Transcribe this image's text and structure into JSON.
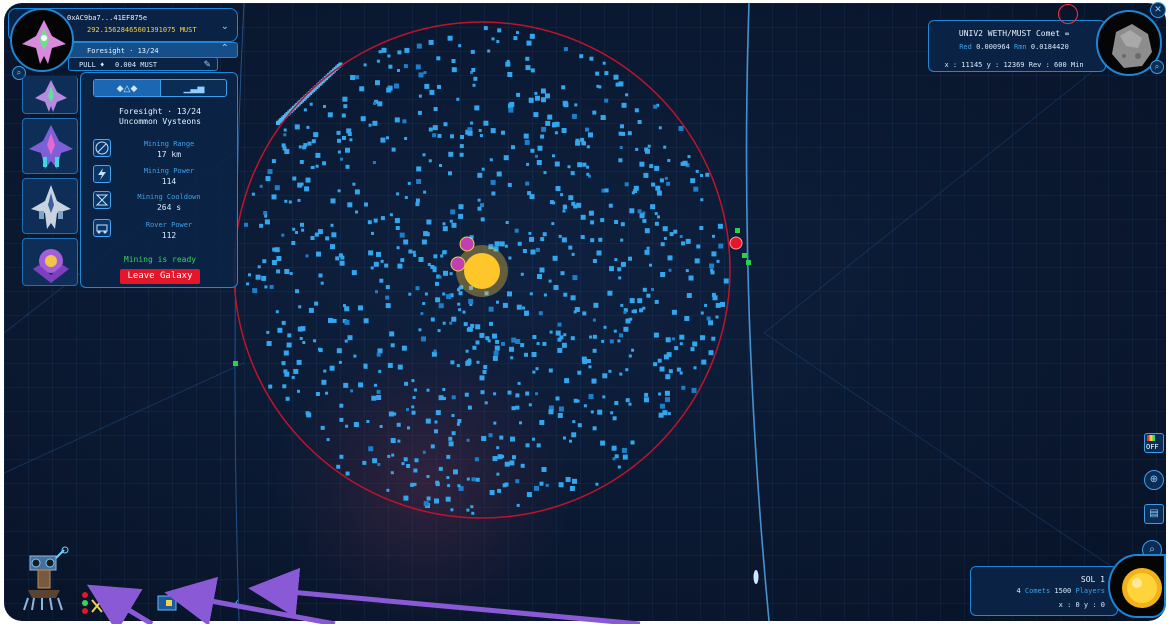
{
  "wallet": {
    "address": "0xAC9ba7...41EF875e",
    "balance": "292.15628465601391075 MUST",
    "ship_selector": "Foresight · 13/24",
    "pull_label": "PULL ♦",
    "pull_value": "0.004 MUST"
  },
  "ship": {
    "name_line": "Foresight · 13/24",
    "rarity": "Uncommon Vysteons",
    "stats": [
      {
        "label": "Mining Range",
        "value": "17 km"
      },
      {
        "label": "Mining Power",
        "value": "114"
      },
      {
        "label": "Mining Cooldown",
        "value": "264 s"
      },
      {
        "label": "Rover Power",
        "value": "112"
      }
    ],
    "status": "Mining is ready",
    "leave_button": "Leave Galaxy"
  },
  "target": {
    "name": "UNIV2 WETH/MUST Comet",
    "red_label": "Red",
    "red_value": "0.000964",
    "rmn_label": "Rmn",
    "rmn_value": "0.0184420",
    "coords": "x : 11145  y : 12369  Rev : 600 Min"
  },
  "system": {
    "name": "SOL 1",
    "comets_count": "4",
    "comets_label": "Comets",
    "players_count": "1500",
    "players_label": "Players",
    "coords": "x : 0   y : 0"
  },
  "toggle_label": "OFF",
  "colors": {
    "accent": "#3fa0ea",
    "panel_border": "#1e86d6",
    "orbit_red": "#c0132b",
    "balance_yellow": "#f1d24a",
    "ready_green": "#38d45a",
    "button_red": "#e3162a",
    "comet_blue": "#34a6ee",
    "annotation_arrow": "#8a5ad6"
  },
  "icons": [
    "ship-avatar-icon",
    "chevron-down-icon",
    "chevron-up-icon",
    "edit-icon",
    "zoom-icon",
    "range-icon",
    "power-icon",
    "cooldown-icon",
    "rover-icon",
    "close-icon",
    "minimap-toggle-icon",
    "locate-icon",
    "map-icon",
    "rover-robot-icon"
  ]
}
